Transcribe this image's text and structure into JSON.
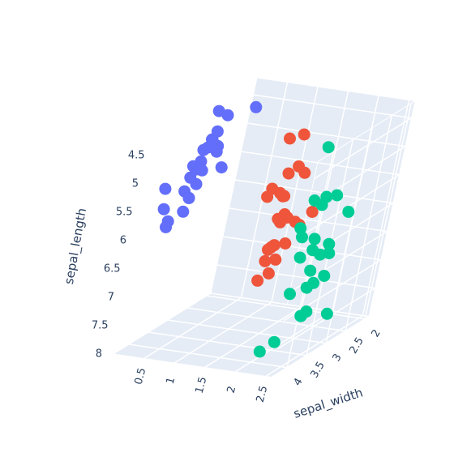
{
  "chart_data": {
    "type": "scatter3d",
    "xlim": [
      0,
      2.6
    ],
    "ylim": [
      1.9,
      4.4
    ],
    "zlim": [
      4.2,
      8.0
    ],
    "xticks": [
      0.5,
      1,
      1.5,
      2,
      2.5
    ],
    "yticks": [
      2,
      2.5,
      3,
      3.5,
      4
    ],
    "zticks": [
      4.5,
      5,
      5.5,
      6,
      6.5,
      7,
      7.5,
      8
    ],
    "y_label": "sepal_width",
    "z_label": "sepal_length",
    "grid": true,
    "series": [
      {
        "color": "#636efa",
        "x": [
          0.2,
          0.2,
          0.2,
          0.2,
          0.2,
          0.4,
          0.3,
          0.2,
          0.2,
          0.1,
          0.2,
          0.2,
          0.1,
          0.2,
          0.4,
          0.4,
          0.3,
          0.3,
          0.3,
          0.2,
          0.2,
          0.3,
          0.2,
          0.1,
          0.6
        ],
        "y": [
          3.5,
          3.0,
          3.2,
          3.1,
          3.6,
          3.9,
          3.4,
          3.4,
          2.9,
          3.1,
          3.7,
          3.4,
          3.0,
          4.0,
          4.4,
          3.9,
          3.5,
          3.8,
          3.8,
          3.4,
          3.0,
          2.3,
          4.2,
          4.1,
          3.5
        ],
        "z": [
          5.1,
          4.9,
          4.7,
          4.6,
          5.0,
          5.4,
          4.6,
          5.0,
          4.4,
          4.9,
          5.4,
          4.8,
          4.3,
          5.8,
          5.7,
          5.4,
          5.1,
          5.7,
          5.1,
          5.4,
          5.0,
          4.5,
          5.5,
          5.2,
          5.0
        ]
      },
      {
        "color": "#ef553b",
        "x": [
          1.4,
          1.5,
          1.5,
          1.3,
          1.5,
          1.3,
          1.6,
          1.0,
          1.3,
          1.4,
          1.0,
          1.5,
          1.0,
          1.4,
          1.3,
          1.4,
          1.0,
          1.5,
          1.8,
          1.3,
          1.5,
          1.4,
          1.5,
          1.0,
          1.1
        ],
        "y": [
          3.2,
          3.2,
          3.1,
          2.3,
          2.8,
          2.8,
          3.3,
          2.4,
          2.9,
          2.7,
          2.0,
          3.0,
          2.2,
          2.9,
          2.9,
          3.1,
          2.7,
          2.2,
          3.2,
          2.8,
          2.5,
          2.8,
          2.9,
          2.6,
          2.4
        ],
        "z": [
          7.0,
          6.4,
          6.9,
          5.5,
          6.5,
          5.7,
          6.3,
          4.9,
          6.6,
          5.2,
          5.0,
          5.9,
          6.0,
          6.1,
          5.6,
          6.7,
          5.8,
          6.2,
          5.9,
          6.1,
          6.3,
          6.8,
          6.0,
          5.7,
          5.5
        ]
      },
      {
        "color": "#00cc96",
        "x": [
          2.5,
          1.9,
          2.1,
          1.8,
          2.2,
          2.1,
          1.7,
          1.8,
          1.8,
          2.5,
          2.0,
          1.9,
          2.1,
          2.0,
          2.4,
          2.2,
          2.3,
          1.5,
          2.3,
          2.0,
          2.0,
          2.0,
          2.2,
          1.8,
          2.5
        ],
        "y": [
          3.3,
          2.7,
          3.0,
          2.9,
          3.0,
          3.0,
          2.5,
          2.9,
          2.5,
          3.6,
          3.2,
          2.7,
          3.0,
          2.5,
          2.8,
          3.8,
          2.6,
          2.2,
          3.2,
          2.8,
          2.8,
          3.8,
          2.8,
          3.0,
          3.3
        ],
        "z": [
          6.3,
          5.8,
          7.1,
          6.3,
          6.5,
          7.6,
          4.9,
          7.3,
          6.7,
          7.2,
          6.5,
          6.4,
          6.8,
          5.7,
          5.8,
          7.7,
          7.7,
          6.0,
          6.9,
          5.6,
          7.7,
          7.9,
          6.4,
          6.1,
          6.7
        ]
      }
    ]
  }
}
